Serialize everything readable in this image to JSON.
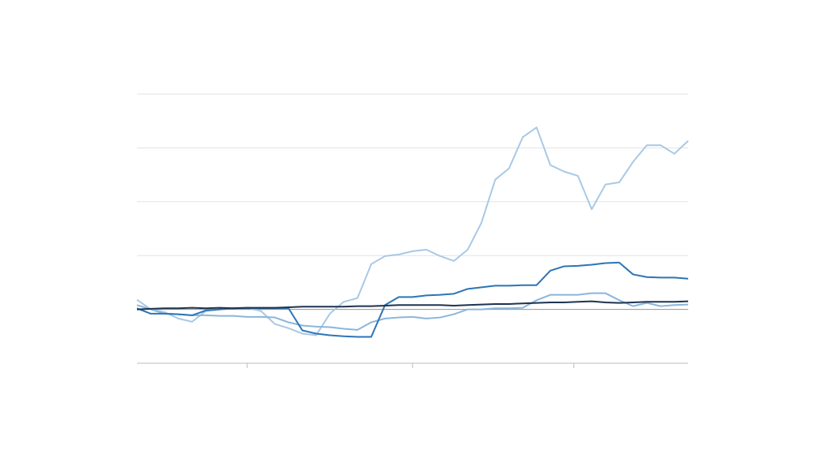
{
  "chart_data": {
    "type": "line",
    "x": [
      0,
      1,
      2,
      3,
      4,
      5,
      6,
      7,
      8,
      9,
      10,
      11,
      12,
      13,
      14,
      15,
      16,
      17,
      18,
      19,
      20,
      21,
      22,
      23,
      24,
      25,
      26,
      27,
      28,
      29,
      30,
      31,
      32,
      33,
      34,
      35,
      36,
      37,
      38,
      39,
      40
    ],
    "xlim": [
      0,
      40
    ],
    "xticks": [
      8,
      20,
      31.7
    ],
    "ylim": [
      -1,
      4
    ],
    "yticks": [
      -1,
      0,
      1,
      2,
      3,
      4
    ],
    "baseline": 0,
    "grid": true,
    "series": [
      {
        "color": "#a9c9e6",
        "values": [
          0.18,
          0,
          -0.05,
          -0.17,
          -0.23,
          -0.03,
          0,
          0.03,
          0.03,
          -0.03,
          -0.27,
          -0.35,
          -0.45,
          -0.48,
          -0.08,
          0.14,
          0.21,
          0.84,
          0.99,
          1.02,
          1.08,
          1.11,
          0.99,
          0.9,
          1.11,
          1.61,
          2.41,
          2.62,
          3.2,
          3.38,
          2.68,
          2.56,
          2.48,
          1.86,
          2.32,
          2.36,
          2.74,
          3.05,
          3.05,
          2.89,
          3.13
        ]
      },
      {
        "color": "#8bb6dc",
        "values": [
          0.08,
          0,
          -0.08,
          -0.09,
          -0.11,
          -0.11,
          -0.12,
          -0.12,
          -0.14,
          -0.14,
          -0.15,
          -0.24,
          -0.3,
          -0.32,
          -0.33,
          -0.36,
          -0.38,
          -0.24,
          -0.17,
          -0.15,
          -0.14,
          -0.17,
          -0.15,
          -0.09,
          0,
          0,
          0.02,
          0.02,
          0.03,
          0.17,
          0.27,
          0.27,
          0.27,
          0.3,
          0.3,
          0.17,
          0.06,
          0.12,
          0.06,
          0.08,
          0.09
        ]
      },
      {
        "color": "#2e75b6",
        "values": [
          0.02,
          -0.08,
          -0.08,
          -0.09,
          -0.11,
          -0.02,
          0,
          0.02,
          0.02,
          0.02,
          0.02,
          0.02,
          -0.39,
          -0.45,
          -0.48,
          -0.5,
          -0.51,
          -0.51,
          0.08,
          0.23,
          0.23,
          0.26,
          0.27,
          0.29,
          0.38,
          0.41,
          0.44,
          0.44,
          0.45,
          0.45,
          0.72,
          0.8,
          0.81,
          0.83,
          0.86,
          0.87,
          0.65,
          0.6,
          0.59,
          0.59,
          0.57
        ]
      },
      {
        "color": "#1f3552",
        "values": [
          0,
          0.01,
          0.02,
          0.02,
          0.03,
          0.02,
          0.03,
          0.02,
          0.03,
          0.03,
          0.03,
          0.04,
          0.05,
          0.05,
          0.05,
          0.05,
          0.06,
          0.06,
          0.07,
          0.08,
          0.08,
          0.08,
          0.08,
          0.07,
          0.08,
          0.09,
          0.1,
          0.1,
          0.11,
          0.12,
          0.13,
          0.13,
          0.14,
          0.15,
          0.13,
          0.12,
          0.13,
          0.14,
          0.14,
          0.14,
          0.15
        ]
      }
    ]
  }
}
